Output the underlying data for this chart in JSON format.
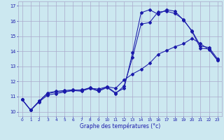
{
  "xlabel": "Graphe des températures (°c)",
  "bg_color": "#cce8f0",
  "grid_color": "#aaaacc",
  "line_color": "#1a1aaa",
  "x_ticks": [
    0,
    1,
    2,
    3,
    4,
    5,
    6,
    7,
    8,
    9,
    10,
    11,
    12,
    13,
    14,
    15,
    16,
    17,
    18,
    19,
    20,
    21,
    22,
    23
  ],
  "y_ticks": [
    10,
    11,
    12,
    13,
    14,
    15,
    16,
    17
  ],
  "xlim": [
    -0.5,
    23.5
  ],
  "ylim": [
    9.7,
    17.3
  ],
  "line1_x": [
    0,
    1,
    2,
    3,
    4,
    5,
    6,
    7,
    8,
    9,
    10,
    11,
    12,
    13,
    14,
    15,
    16,
    17,
    18,
    19,
    20,
    21,
    22,
    23
  ],
  "line1_y": [
    10.8,
    10.1,
    10.7,
    11.2,
    11.3,
    11.35,
    11.4,
    11.35,
    11.55,
    11.35,
    11.6,
    11.2,
    11.7,
    13.6,
    15.8,
    15.9,
    16.6,
    16.65,
    16.5,
    16.1,
    15.3,
    14.2,
    14.15,
    13.4
  ],
  "line2_x": [
    0,
    1,
    2,
    3,
    4,
    5,
    6,
    7,
    8,
    9,
    10,
    11,
    12,
    13,
    14,
    15,
    16,
    17,
    18,
    19,
    20,
    21,
    22,
    23
  ],
  "line2_y": [
    10.8,
    10.1,
    10.7,
    11.25,
    11.35,
    11.4,
    11.45,
    11.4,
    11.6,
    11.4,
    11.65,
    11.25,
    11.55,
    13.9,
    16.55,
    16.75,
    16.45,
    16.75,
    16.65,
    16.05,
    15.35,
    14.35,
    14.25,
    13.5
  ],
  "line3_x": [
    0,
    1,
    2,
    3,
    4,
    5,
    6,
    7,
    8,
    9,
    10,
    11,
    12,
    13,
    14,
    15,
    16,
    17,
    18,
    19,
    20,
    21,
    22,
    23
  ],
  "line3_y": [
    10.8,
    10.1,
    10.65,
    11.1,
    11.2,
    11.3,
    11.4,
    11.45,
    11.55,
    11.5,
    11.65,
    11.55,
    12.1,
    12.5,
    12.8,
    13.2,
    13.8,
    14.05,
    14.3,
    14.5,
    14.85,
    14.5,
    14.1,
    13.4
  ]
}
